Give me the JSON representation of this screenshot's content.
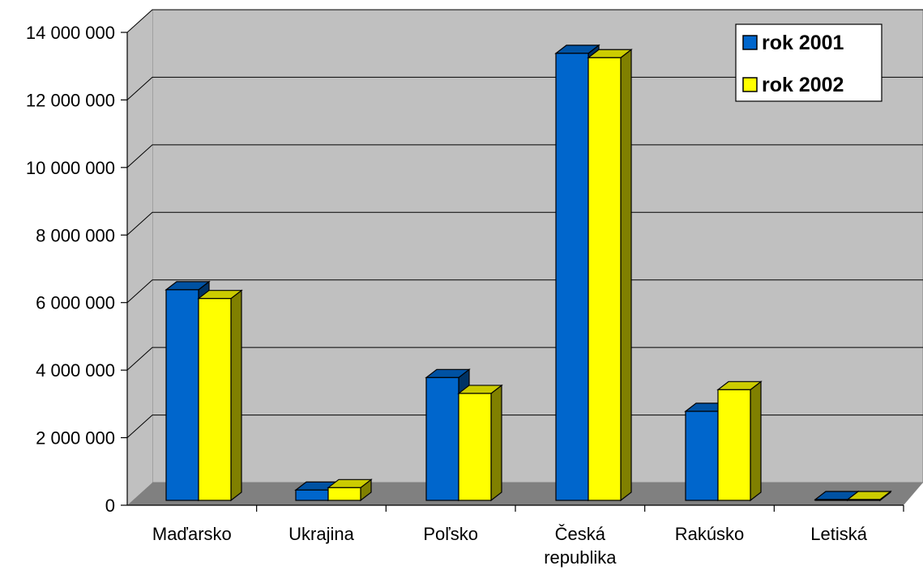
{
  "chart_data": {
    "type": "bar",
    "style": "3d-clustered-column",
    "title": "",
    "xlabel": "",
    "ylabel": "",
    "categories": [
      "Maďarsko",
      "Ukrajina",
      "Poľsko",
      "Česká republika",
      "Rakúsko",
      "Letiská"
    ],
    "category_label_lines": [
      [
        "Maďarsko"
      ],
      [
        "Ukrajina"
      ],
      [
        "Poľsko"
      ],
      [
        "Česká",
        "republika"
      ],
      [
        "Rakúsko"
      ],
      [
        "Letiská"
      ]
    ],
    "series": [
      {
        "name": "rok 2001",
        "color": "#0066cc",
        "values": [
          6380000,
          450000,
          3780000,
          13380000,
          2780000,
          20000
        ]
      },
      {
        "name": "rok 2002",
        "color": "#ffff00",
        "values": [
          6120000,
          520000,
          3310000,
          13250000,
          3420000,
          20000
        ]
      }
    ],
    "ylim": [
      0,
      14000000
    ],
    "yticks": [
      0,
      2000000,
      4000000,
      6000000,
      8000000,
      10000000,
      12000000,
      14000000
    ],
    "ytick_labels": [
      "0",
      "2 000 000",
      "4 000 000",
      "6 000 000",
      "8 000 000",
      "10 000 000",
      "12 000 000",
      "14 000 000"
    ],
    "grid": true,
    "legend": "top-right",
    "colors": {
      "wall": "#c0c0c0",
      "floor": "#808080",
      "grid": "#000000"
    }
  }
}
